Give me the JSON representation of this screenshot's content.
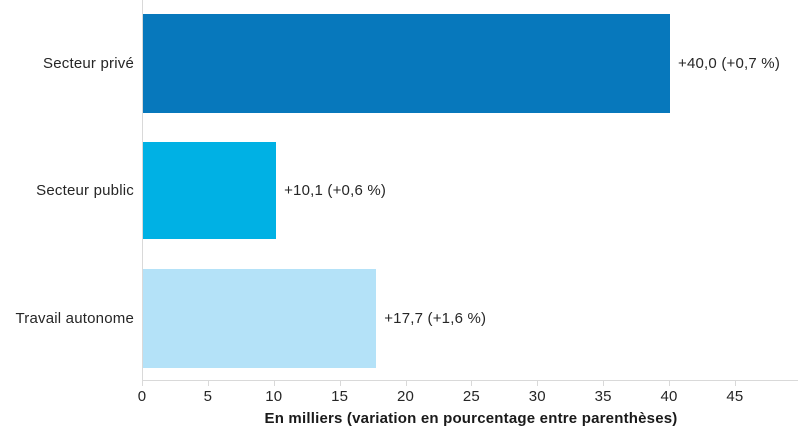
{
  "chart_data": {
    "type": "bar",
    "orientation": "horizontal",
    "categories": [
      "Secteur privé",
      "Secteur public",
      "Travail autonome"
    ],
    "values": [
      40.0,
      10.1,
      17.7
    ],
    "value_labels": [
      "+40,0 (+0,7 %)",
      "+10,1 (+0,6 %)",
      "+17,7 (+1,6 %)"
    ],
    "bar_colors": [
      "#0778bc",
      "#00b1e4",
      "#b4e2f8"
    ],
    "x_ticks": [
      0,
      5,
      10,
      15,
      20,
      25,
      30,
      35,
      40,
      45
    ],
    "xlim": [
      0,
      50
    ],
    "xlabel": "En milliers (variation en pourcentage entre parenthèses)",
    "axis_color": "#d9d9d9",
    "text_color": "#262626",
    "grid": false,
    "legend": false
  }
}
